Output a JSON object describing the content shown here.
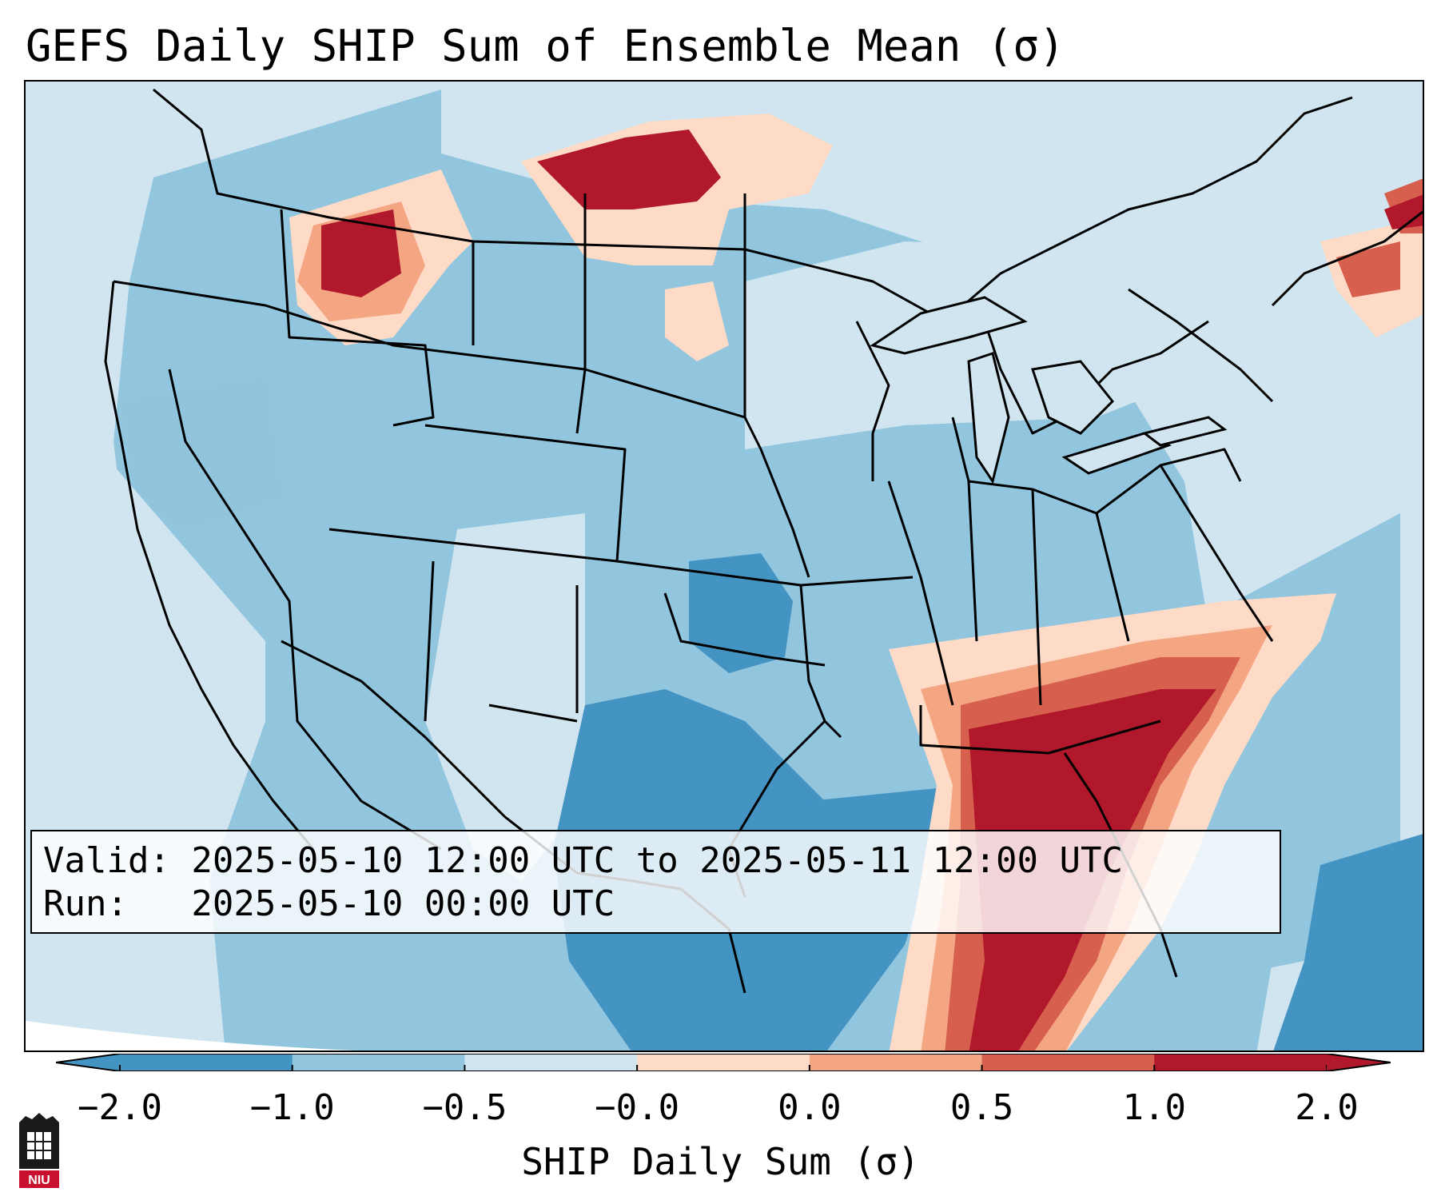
{
  "title": "GEFS Daily SHIP Sum of Ensemble Mean (σ)",
  "info": {
    "valid_line": "Valid: 2025-05-10 12:00 UTC to 2025-05-11 12:00 UTC",
    "run_line": "Run:   2025-05-10 00:00 UTC"
  },
  "colorbar": {
    "label": "SHIP Daily Sum (σ)",
    "tick_labels": [
      "−2.0",
      "−1.0",
      "−0.5",
      "−0.0",
      "0.0",
      "0.5",
      "1.0",
      "2.0"
    ],
    "colors": [
      "#4393c3",
      "#92c5de",
      "#d1e5f0",
      "#fddbc7",
      "#f4a582",
      "#d6604d",
      "#b2182b"
    ],
    "extend": "both"
  },
  "map": {
    "region": "Contiguous United States",
    "anomaly_areas": [
      {
        "area": "Florida, Georgia and southeastern Gulf/Atlantic coast",
        "category": "above 2.0"
      },
      {
        "area": "Northern Montana / North Dakota border region",
        "category": "1.0 to 2.0"
      },
      {
        "area": "Idaho / western Montana",
        "category": "1.0 to 2.0"
      },
      {
        "area": "Northern New England",
        "category": "1.0 to 2.0"
      },
      {
        "area": "Texas, Oklahoma and western Gulf of Mexico",
        "category": "-2.0 to -1.0"
      },
      {
        "area": "Remainder of central and eastern U.S.",
        "category": "-1.0 to -0.5"
      }
    ]
  },
  "logo": {
    "text": "NIU"
  }
}
